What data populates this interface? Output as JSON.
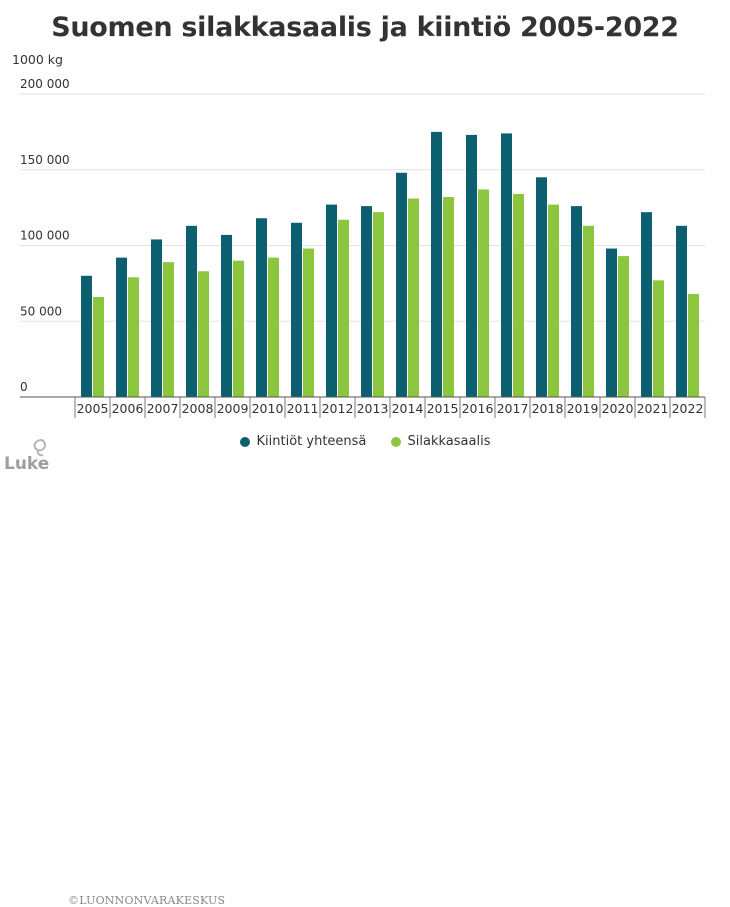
{
  "chart_data": {
    "type": "bar",
    "title": "Suomen silakkasaalis ja kiintiö 2005-2022",
    "ylabel": "1000 kg",
    "ylim": [
      0,
      200000
    ],
    "yticks": [
      "0",
      "50 000",
      "100 000",
      "150 000",
      "200 000"
    ],
    "ytick_values": [
      0,
      50000,
      100000,
      150000,
      200000
    ],
    "legend_position": "bottom",
    "categories": [
      "2005",
      "2006",
      "2007",
      "2008",
      "2009",
      "2010",
      "2011",
      "2012",
      "2013",
      "2014",
      "2015",
      "2016",
      "2017",
      "2018",
      "2019",
      "2020",
      "2021",
      "2022"
    ],
    "series": [
      {
        "name": "Kiintiöt yhteensä",
        "color": "#0b5f6f",
        "values": [
          80000,
          92000,
          104000,
          113000,
          107000,
          118000,
          115000,
          127000,
          126000,
          148000,
          175000,
          173000,
          174000,
          145000,
          126000,
          98000,
          122000,
          113000
        ]
      },
      {
        "name": "Silakkasaalis",
        "color": "#8cc63f",
        "values": [
          66000,
          79000,
          89000,
          83000,
          90000,
          92000,
          98000,
          117000,
          122000,
          131000,
          132000,
          137000,
          134000,
          127000,
          113000,
          93000,
          77000,
          68000
        ]
      }
    ]
  },
  "footer": {
    "logo_text": "Luke",
    "copyright": "©LUONNONVARAKESKUS"
  }
}
